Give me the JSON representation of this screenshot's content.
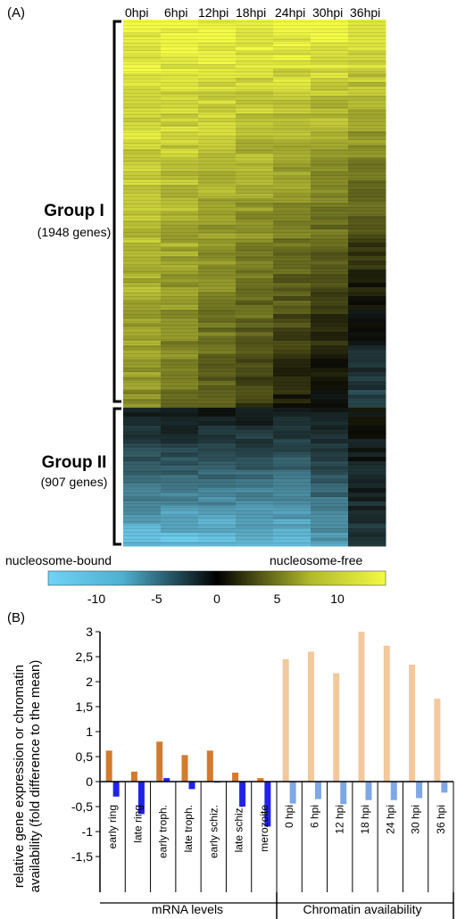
{
  "panel_a": {
    "label": "(A)",
    "columns": [
      "0hpi",
      "6hpi",
      "12hpi",
      "18hpi",
      "24hpi",
      "30hpi",
      "36hpi"
    ],
    "groups": [
      {
        "title": "Group I",
        "subtitle": "(1948 genes)"
      },
      {
        "title": "Group II",
        "subtitle": "(907 genes)"
      }
    ],
    "scale": {
      "left_label": "nucleosome-bound",
      "right_label": "nucleosome-free",
      "ticks": [
        "-10",
        "-5",
        "0",
        "5",
        "10"
      ],
      "min": -14,
      "max": 14,
      "colors": {
        "negative": "#6fd3f5",
        "zero": "#000000",
        "positive": "#f2fa45"
      }
    }
  },
  "panel_b": {
    "label": "(B)",
    "group_labels": [
      "mRNA levels",
      "Chromatin availability"
    ],
    "colors": {
      "orange": "#d47a2e",
      "blue": "#2222ee",
      "peach": "#f3c89c",
      "light_blue": "#7ea7e6"
    }
  },
  "chart_data": [
    {
      "type": "heatmap",
      "columns": [
        "0hpi",
        "6hpi",
        "12hpi",
        "18hpi",
        "24hpi",
        "30hpi",
        "36hpi"
      ],
      "row_groups": [
        {
          "name": "Group I",
          "genes": 1948
        },
        {
          "name": "Group II",
          "genes": 907
        }
      ],
      "color_scale": {
        "min": -14,
        "max": 14,
        "ticks": [
          -10,
          -5,
          0,
          5,
          10
        ]
      }
    },
    {
      "type": "bar",
      "ylabel": "relative gene expression or chromatin availability (fold difference to the mean)",
      "ylim": [
        -1.5,
        3
      ],
      "yticks": [
        "-1,5",
        "-1",
        "-0,5",
        "0",
        "0,5",
        "1",
        "1,5",
        "2",
        "2,5",
        "3"
      ],
      "groups": [
        {
          "name": "mRNA levels",
          "categories": [
            "early ring",
            "late ring",
            "early troph.",
            "late troph.",
            "early schiz.",
            "late schiz.",
            "merozoite"
          ],
          "series": [
            {
              "color": "#d47a2e",
              "values": [
                0.62,
                0.2,
                0.8,
                0.53,
                0.62,
                0.18,
                0.07
              ]
            },
            {
              "color": "#2222ee",
              "values": [
                -0.3,
                -0.65,
                0.07,
                -0.15,
                -0.02,
                -0.5,
                -0.9
              ]
            }
          ]
        },
        {
          "name": "Chromatin availability",
          "categories": [
            "0 hpi",
            "6 hpi",
            "12 hpi",
            "18 hpi",
            "24 hpi",
            "30 hpi",
            "36 hpi"
          ],
          "series": [
            {
              "color": "#f3c89c",
              "values": [
                2.45,
                2.6,
                2.17,
                3.0,
                2.72,
                2.34,
                1.66
              ]
            },
            {
              "color": "#7ea7e6",
              "values": [
                -0.44,
                -0.35,
                -0.45,
                -0.37,
                -0.37,
                -0.33,
                -0.22
              ]
            }
          ]
        }
      ]
    }
  ]
}
